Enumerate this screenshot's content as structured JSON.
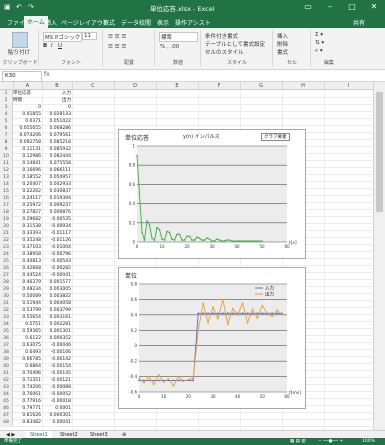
{
  "window": {
    "title": "単位応答.xlsx - Excel",
    "user": "サインイン"
  },
  "quick_access": [
    "保存",
    "元に戻す",
    "やり直し"
  ],
  "tabs": [
    "ファイル",
    "ホーム",
    "挿入",
    "ページレイアウト",
    "数式",
    "データ",
    "校閲",
    "表示",
    "操作アシスト"
  ],
  "active_tab_index": 1,
  "share_label": "共有",
  "ribbon": {
    "clipboard": {
      "label": "クリップボード",
      "paste": "貼り付け"
    },
    "font": {
      "label": "フォント",
      "name": "MS Pゴシック",
      "size": "11"
    },
    "alignment": {
      "label": "配置"
    },
    "number": {
      "label": "数値",
      "format": "標準"
    },
    "styles": {
      "label": "スタイル",
      "cond": "条件付き書式",
      "table": "テーブルとして書式設定",
      "cell": "セルのスタイル"
    },
    "cells": {
      "label": "セル",
      "insert": "挿入",
      "delete": "削除",
      "format": "書式"
    },
    "editing": {
      "label": "編集"
    }
  },
  "formula_bar": {
    "name_box": "K30",
    "fx": "fx",
    "value": ""
  },
  "columns": [
    "A",
    "B",
    "C",
    "D",
    "E",
    "F",
    "G",
    "H",
    "I"
  ],
  "sheet": {
    "header_a": "単位応答",
    "header_b": "入力",
    "rows": [
      [
        "時間",
        "出力"
      ],
      [
        "0",
        "0"
      ],
      [
        "0.01855",
        "0.028133"
      ],
      [
        "0.0371",
        "0.051022"
      ],
      [
        "0.055655",
        "0.068286"
      ],
      [
        "0.074206",
        "0.079561"
      ],
      [
        "0.092758",
        "0.085218"
      ],
      [
        "0.11131",
        "0.085932"
      ],
      [
        "0.12986",
        "0.082444"
      ],
      [
        "0.14841",
        "0.075558"
      ],
      [
        "0.16696",
        "0.066111"
      ],
      [
        "0.18552",
        "0.054957"
      ],
      [
        "0.20407",
        "0.042933"
      ],
      [
        "0.22262",
        "0.030837"
      ],
      [
        "0.24117",
        "0.019394"
      ],
      [
        "0.25972",
        "0.009237"
      ],
      [
        "0.27827",
        "0.000876"
      ],
      [
        "0.29682",
        "-0.00535"
      ],
      [
        "0.31538",
        "-0.00934"
      ],
      [
        "0.33393",
        "-0.01117"
      ],
      [
        "0.35248",
        "-0.01126"
      ],
      [
        "0.37103",
        "-0.01004"
      ],
      [
        "0.38958",
        "-0.00796"
      ],
      [
        "0.40813",
        "-0.00543"
      ],
      [
        "0.42668",
        "-0.00282"
      ],
      [
        "0.44524",
        "-0.00041"
      ],
      [
        "0.46379",
        "0.001577"
      ],
      [
        "0.48234",
        "0.003005"
      ],
      [
        "0.50089",
        "0.003822"
      ],
      [
        "0.51944",
        "0.004058"
      ],
      [
        "0.53799",
        "0.003799"
      ],
      [
        "0.55654",
        "0.003161"
      ],
      [
        "0.5751",
        "0.002281"
      ],
      [
        "0.59365",
        "0.001301"
      ],
      [
        "0.6122",
        "0.000352"
      ],
      [
        "0.63075",
        "-0.00046"
      ],
      [
        "0.6493",
        "-0.00106"
      ],
      [
        "0.66785",
        "-0.00142"
      ],
      [
        "0.6864",
        "-0.00154"
      ],
      [
        "0.70496",
        "-0.00145"
      ],
      [
        "0.72351",
        "-0.00121"
      ],
      [
        "0.74206",
        "-0.00088"
      ],
      [
        "0.76061",
        "-0.00052"
      ],
      [
        "0.77916",
        "-0.00018"
      ],
      [
        "0.79771",
        "0.0001"
      ],
      [
        "0.81626",
        "0.000301"
      ],
      [
        "0.83482",
        "0.00041"
      ]
    ]
  },
  "sheet_tabs": [
    "Sheet1",
    "Sheet2",
    "Sheet3"
  ],
  "active_sheet_index": 0,
  "status": {
    "ready": "準備完了",
    "zoom": "100%"
  },
  "chart_data": [
    {
      "type": "line",
      "title": "単位応答",
      "subtitle": "y(n)  インパルス",
      "legend_button": "グラフ要素",
      "xlabel": "t[s]",
      "ylim": [
        0,
        1
      ],
      "yticks": [
        0,
        0.2,
        0.4,
        0.6,
        0.8,
        1
      ],
      "xlim": [
        0,
        60
      ],
      "xticks": [
        0,
        10,
        20,
        30,
        40,
        50,
        60
      ],
      "x": [
        0,
        1,
        2,
        3,
        4,
        5,
        6,
        7,
        8,
        9,
        10,
        11,
        12,
        13,
        14,
        15,
        16,
        17,
        18,
        19,
        20,
        21,
        22,
        23,
        24,
        25,
        26,
        27,
        28,
        29,
        30,
        31,
        32,
        33,
        34,
        35,
        36,
        37,
        38,
        39,
        40,
        41,
        42,
        43,
        44,
        45,
        46,
        47,
        48,
        49,
        50
      ],
      "series": [
        {
          "values": [
            0.9,
            0.5,
            0.1,
            0.02,
            0.22,
            0.18,
            0.04,
            0.02,
            0.15,
            0.13,
            0.03,
            0.02,
            0.11,
            0.1,
            0.03,
            0.02,
            0.08,
            0.08,
            0.02,
            0.02,
            0.06,
            0.06,
            0.02,
            0.02,
            0.05,
            0.04,
            0.02,
            0.02,
            0.04,
            0.03,
            0.01,
            0.01,
            0.03,
            0.02,
            0.01,
            0.01,
            0.02,
            0.02,
            0.01,
            0.01,
            0.01,
            0.01,
            0.01,
            0.01,
            0.01,
            0.01,
            0.01,
            0.01,
            0.01,
            0.01,
            0.01
          ]
        }
      ]
    },
    {
      "type": "line",
      "title": "単位",
      "xlabel": "t[ms]",
      "ylim": [
        -0.6,
        0.8
      ],
      "yticks": [
        -0.6,
        -0.4,
        -0.2,
        0,
        0.2,
        0.4,
        0.6,
        0.8
      ],
      "xlim": [
        0,
        60
      ],
      "xticks": [
        0,
        10,
        20,
        30,
        40,
        50,
        60
      ],
      "legend": [
        "入力",
        "出力"
      ],
      "x": [
        0,
        2,
        4,
        6,
        8,
        10,
        12,
        14,
        16,
        18,
        20,
        22,
        24,
        26,
        28,
        30,
        32,
        34,
        36,
        38,
        40,
        42,
        44,
        46,
        48,
        50,
        52,
        54,
        56,
        58
      ],
      "series": [
        {
          "name": "入力",
          "values": [
            -0.45,
            -0.45,
            -0.45,
            -0.45,
            -0.45,
            -0.45,
            -0.45,
            -0.45,
            -0.45,
            -0.45,
            -0.45,
            -0.45,
            0.42,
            0.42,
            0.42,
            0.42,
            0.42,
            0.42,
            0.42,
            0.42,
            0.42,
            0.42,
            0.42,
            0.42,
            0.42,
            0.42,
            0.42,
            0.42,
            0.42,
            0.42
          ]
        },
        {
          "name": "出力",
          "values": [
            -0.42,
            -0.48,
            -0.4,
            -0.5,
            -0.38,
            -0.47,
            -0.43,
            -0.52,
            -0.4,
            -0.46,
            -0.44,
            -0.42,
            0.2,
            0.55,
            0.3,
            0.5,
            0.35,
            0.6,
            0.28,
            0.48,
            0.4,
            0.55,
            0.3,
            0.47,
            0.36,
            0.52,
            0.42,
            0.38,
            0.46,
            0.4
          ]
        }
      ]
    }
  ]
}
